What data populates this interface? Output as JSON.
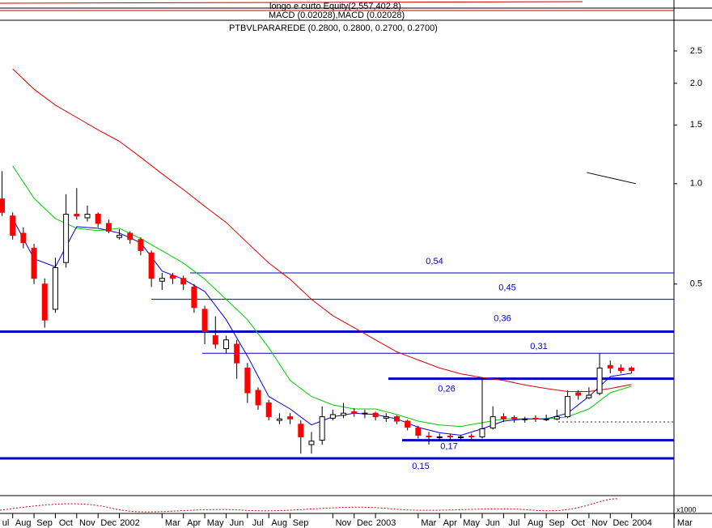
{
  "chart_data": {
    "type": "candlestick",
    "header": [
      "longo e curto Equity(2,557,402.8)",
      "MACD (0.02028),MACD (0.02028)",
      "PTBVLPARAREDE (0.2800, 0.2800, 0.2700, 0.2700)"
    ],
    "volume_unit": "x1000",
    "log_scale": true,
    "ylim": [
      0.116,
      3.04
    ],
    "yticks": [
      {
        "value": 0.5,
        "label": "0.5"
      },
      {
        "value": 1,
        "label": "1.0"
      },
      1.5,
      {
        "value": 2,
        "label": "2.0"
      },
      2.5
    ],
    "xlim": [
      0,
      32.8
    ],
    "xticks": [
      {
        "value": 0,
        "label": "ul"
      },
      {
        "value": 1,
        "label": "Aug"
      },
      {
        "value": 2,
        "label": "Sep"
      },
      {
        "value": 3,
        "label": "Oct"
      },
      {
        "value": 4,
        "label": "Nov"
      },
      {
        "value": 5,
        "label": "Dec"
      },
      {
        "value": 6,
        "label": "2002"
      },
      {
        "value": 8,
        "label": "Mar"
      },
      {
        "value": 9,
        "label": "Apr"
      },
      {
        "value": 10,
        "label": "May"
      },
      {
        "value": 11,
        "label": "Jun"
      },
      {
        "value": 12,
        "label": "Jul"
      },
      {
        "value": 13,
        "label": "Aug"
      },
      {
        "value": 14,
        "label": "Sep"
      },
      {
        "value": 16,
        "label": "Nov"
      },
      {
        "value": 17,
        "label": "Dec"
      },
      {
        "value": 18,
        "label": "2003"
      },
      {
        "value": 20,
        "label": "Mar"
      },
      {
        "value": 21,
        "label": "Apr"
      },
      {
        "value": 22,
        "label": "May"
      },
      {
        "value": 23,
        "label": "Jun"
      },
      {
        "value": 24,
        "label": "Jul"
      },
      {
        "value": 25,
        "label": "Aug"
      },
      {
        "value": 26,
        "label": "Sep"
      },
      {
        "value": 27,
        "label": "Oct"
      },
      {
        "value": 28,
        "label": "Nov"
      },
      {
        "value": 29,
        "label": "Dec"
      },
      {
        "value": 30,
        "label": "2004"
      },
      {
        "value": 32,
        "label": "Mar"
      }
    ],
    "x": [
      0.5,
      1,
      1.5,
      2,
      2.5,
      3,
      3.5,
      4,
      4.5,
      5,
      5.5,
      6,
      6.5,
      7,
      7.5,
      8,
      8.5,
      9,
      9.5,
      10,
      10.5,
      11,
      11.5,
      12,
      12.5,
      13,
      13.5,
      14,
      14.5,
      15,
      15.5,
      16,
      16.5,
      17,
      17.5,
      18,
      18.5,
      19,
      19.5,
      20,
      20.5,
      21,
      21.5,
      22,
      22.5,
      23,
      23.5,
      24,
      24.5,
      25,
      25.5,
      26,
      26.5,
      27,
      27.5,
      28,
      28.5,
      29,
      29.5,
      30
    ],
    "open": [
      0.9,
      0.8,
      0.71,
      0.64,
      0.5,
      0.42,
      0.58,
      0.81,
      0.79,
      0.81,
      0.76,
      0.69,
      0.71,
      0.68,
      0.62,
      0.51,
      0.53,
      0.52,
      0.49,
      0.42,
      0.35,
      0.32,
      0.33,
      0.28,
      0.24,
      0.22,
      0.195,
      0.2,
      0.19,
      0.165,
      0.17,
      0.198,
      0.202,
      0.207,
      0.204,
      0.205,
      0.198,
      0.2,
      0.194,
      0.185,
      0.175,
      0.173,
      0.175,
      0.173,
      0.175,
      0.174,
      0.185,
      0.2,
      0.199,
      0.196,
      0.198,
      0.196,
      0.197,
      0.2,
      0.236,
      0.228,
      0.235,
      0.285,
      0.28,
      0.28
    ],
    "high": [
      1.09,
      0.82,
      0.74,
      0.66,
      0.52,
      0.6,
      0.93,
      0.97,
      0.86,
      0.82,
      0.78,
      0.73,
      0.72,
      0.69,
      0.63,
      0.54,
      0.54,
      0.53,
      0.5,
      0.43,
      0.4,
      0.35,
      0.34,
      0.29,
      0.245,
      0.225,
      0.205,
      0.205,
      0.195,
      0.18,
      0.215,
      0.21,
      0.22,
      0.212,
      0.21,
      0.207,
      0.205,
      0.202,
      0.196,
      0.188,
      0.18,
      0.178,
      0.178,
      0.176,
      0.178,
      0.262,
      0.215,
      0.205,
      0.202,
      0.2,
      0.202,
      0.203,
      0.21,
      0.24,
      0.24,
      0.245,
      0.31,
      0.295,
      0.287,
      0.283
    ],
    "low": [
      0.8,
      0.68,
      0.64,
      0.5,
      0.37,
      0.41,
      0.56,
      0.78,
      0.77,
      0.74,
      0.71,
      0.68,
      0.66,
      0.61,
      0.49,
      0.48,
      0.5,
      0.48,
      0.41,
      0.33,
      0.32,
      0.31,
      0.26,
      0.22,
      0.21,
      0.195,
      0.19,
      0.19,
      0.155,
      0.155,
      0.165,
      0.195,
      0.198,
      0.2,
      0.198,
      0.195,
      0.193,
      0.19,
      0.182,
      0.172,
      0.165,
      0.17,
      0.17,
      0.17,
      0.171,
      0.172,
      0.183,
      0.193,
      0.192,
      0.192,
      0.193,
      0.194,
      0.195,
      0.198,
      0.225,
      0.226,
      0.232,
      0.27,
      0.27,
      0.27
    ],
    "close": [
      0.82,
      0.7,
      0.665,
      0.52,
      0.39,
      0.56,
      0.81,
      0.8,
      0.81,
      0.76,
      0.72,
      0.7,
      0.68,
      0.63,
      0.52,
      0.52,
      0.52,
      0.5,
      0.425,
      0.36,
      0.33,
      0.34,
      0.29,
      0.236,
      0.217,
      0.2,
      0.197,
      0.197,
      0.174,
      0.169,
      0.2,
      0.203,
      0.205,
      0.205,
      0.205,
      0.2,
      0.2,
      0.194,
      0.186,
      0.176,
      0.174,
      0.174,
      0.174,
      0.174,
      0.174,
      0.184,
      0.2,
      0.197,
      0.197,
      0.197,
      0.197,
      0.197,
      0.2,
      0.23,
      0.232,
      0.232,
      0.28,
      0.28,
      0.275,
      0.275
    ],
    "up_color": "#ffffff",
    "down_color": "#ff0000",
    "ma_x": [
      1,
      2,
      3,
      4,
      5,
      6,
      7,
      8,
      9,
      10,
      11,
      12,
      13,
      14,
      15,
      16,
      17,
      18,
      19,
      20,
      21,
      22,
      23,
      24,
      25,
      26,
      27,
      28,
      29,
      30
    ],
    "moving_averages": [
      {
        "color": "#dd0000",
        "values": [
          2.21,
          1.92,
          1.72,
          1.58,
          1.45,
          1.34,
          1.2,
          1.07,
          0.96,
          0.855,
          0.765,
          0.665,
          0.578,
          0.517,
          0.45,
          0.402,
          0.37,
          0.34,
          0.313,
          0.296,
          0.28,
          0.269,
          0.262,
          0.257,
          0.249,
          0.243,
          0.238,
          0.238,
          0.243,
          0.25
        ]
      },
      {
        "color": "#00cc00",
        "values": [
          1.13,
          0.904,
          0.786,
          0.735,
          0.723,
          0.735,
          0.684,
          0.629,
          0.578,
          0.517,
          0.45,
          0.391,
          0.322,
          0.257,
          0.23,
          0.217,
          0.211,
          0.211,
          0.203,
          0.194,
          0.189,
          0.187,
          0.192,
          0.197,
          0.197,
          0.197,
          0.2,
          0.211,
          0.236,
          0.247
        ]
      },
      {
        "color": "#0000dd",
        "values": [
          0.786,
          0.595,
          0.563,
          0.743,
          0.735,
          0.711,
          0.665,
          0.547,
          0.517,
          0.475,
          0.391,
          0.304,
          0.23,
          0.211,
          0.189,
          0.2,
          0.205,
          0.203,
          0.197,
          0.186,
          0.179,
          0.176,
          0.184,
          0.194,
          0.197,
          0.197,
          0.205,
          0.23,
          0.264,
          0.27
        ]
      }
    ],
    "trendline": {
      "x": [
        27.9,
        30.2
      ],
      "values": [
        1.08,
        1.0
      ]
    },
    "dotted_level": 0.193,
    "levels": [
      {
        "value": 0.54,
        "label": "0,54",
        "weight": 1
      },
      {
        "value": 0.45,
        "label": "0,45",
        "weight": 1
      },
      {
        "value": 0.36,
        "label": "0,36",
        "weight": 3
      },
      {
        "value": 0.31,
        "label": "0,31",
        "weight": 1
      },
      {
        "value": 0.26,
        "label": "0,26",
        "weight": 3
      },
      {
        "value": 0.17,
        "label": "0,17",
        "weight": 3
      },
      {
        "value": 0.15,
        "label": "0,15",
        "weight": 3
      }
    ],
    "level_color": "#0000cc"
  }
}
